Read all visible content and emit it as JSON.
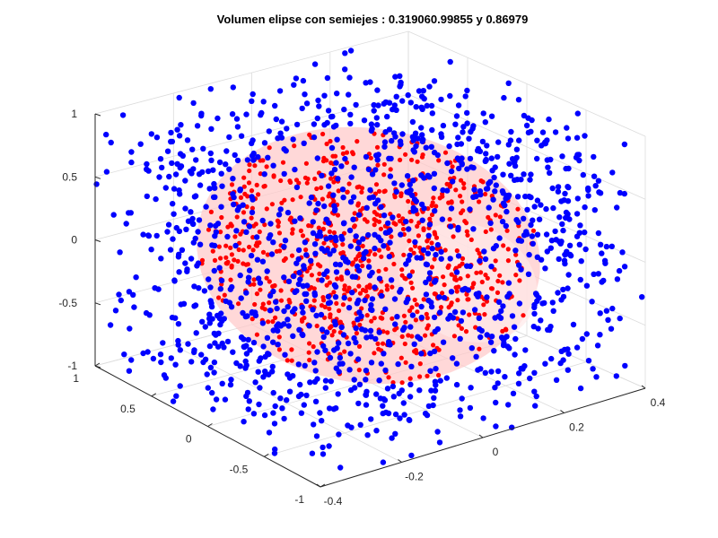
{
  "chart_data": {
    "type": "scatter",
    "title": "Volumen elipse con semiejes : 0.319060.99855 y 0.86979",
    "xlabel": "",
    "ylabel": "",
    "zlabel": "",
    "grid": true,
    "view": "3d",
    "axes": {
      "x": {
        "lim": [
          -0.4,
          0.4
        ],
        "ticks": [
          -0.4,
          -0.2,
          0,
          0.2,
          0.4
        ],
        "tick_labels": [
          "-0.4",
          "-0.2",
          "0",
          "0.2",
          "0.4"
        ]
      },
      "y": {
        "lim": [
          -1,
          1
        ],
        "ticks": [
          -1,
          -0.5,
          0,
          0.5,
          1
        ],
        "tick_labels": [
          "-1",
          "-0.5",
          "0",
          "0.5",
          "1"
        ]
      },
      "z": {
        "lim": [
          -1,
          1
        ],
        "ticks": [
          -1,
          -0.5,
          0,
          0.5,
          1
        ],
        "tick_labels": [
          "-1",
          "-0.5",
          "0",
          "0.5",
          "1"
        ]
      }
    },
    "semiaxes": [
      0.31906,
      0.99855,
      0.86979
    ],
    "series": [
      {
        "color": "#0000ff",
        "marker": "dot",
        "description": "points outside the ellipsoid (approx. 2000 uniform random samples)"
      },
      {
        "color": "#ff0000",
        "marker": "dot",
        "description": "points inside the ellipsoid"
      }
    ],
    "surface": {
      "color": "#ffc8c8",
      "opacity": 0.7
    }
  }
}
